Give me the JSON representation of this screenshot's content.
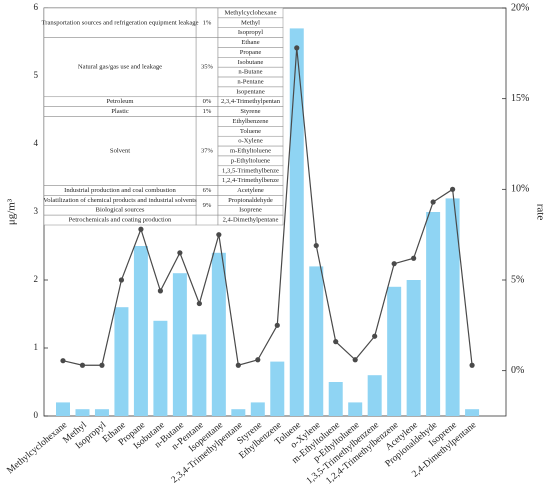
{
  "chart_data": {
    "type": "bar",
    "ylabel": "μg/m³",
    "y2label": "rate",
    "ylim": [
      0,
      6
    ],
    "yticks": [
      0,
      1,
      2,
      3,
      4,
      5,
      6
    ],
    "y2lim": [
      -2.5,
      20
    ],
    "y2ticks": [
      {
        "value": 0,
        "label": "0%"
      },
      {
        "value": 5,
        "label": "5%"
      },
      {
        "value": 10,
        "label": "10%"
      },
      {
        "value": 15,
        "label": "15%"
      },
      {
        "value": 20,
        "label": "20%"
      }
    ],
    "categories": [
      "Methylcyclohexane",
      "Methyl",
      "Isopropyl",
      "Ethane",
      "Propane",
      "Isobutane",
      "n-Butane",
      "n-Pentane",
      "Isopentane",
      "2,3,4-Trimethylpentane",
      "Styrene",
      "Ethylbenzene",
      "Toluene",
      "o-Xylene",
      "m-Ethyltoluene",
      "p-Ethyltoluene",
      "1,3,5-Trimethylbenzene",
      "1,2,4-Trimethylbenzene",
      "Acetylene",
      "Propionaldehyde",
      "Isoprene",
      "2,4-Dimethylpentane"
    ],
    "series": [
      {
        "type": "bar",
        "color": "#8fd4f3",
        "values": [
          0.2,
          0.1,
          0.1,
          1.6,
          2.5,
          1.4,
          2.1,
          1.2,
          2.4,
          0.1,
          0.2,
          0.8,
          5.7,
          2.2,
          0.5,
          0.2,
          0.6,
          1.9,
          2.0,
          3.0,
          3.2,
          0.1
        ]
      },
      {
        "type": "line",
        "axis": "y2",
        "color": "#4a4a4a",
        "values": [
          0.55,
          0.3,
          0.3,
          5.0,
          7.8,
          4.4,
          6.5,
          3.7,
          7.5,
          0.3,
          0.6,
          2.5,
          17.8,
          6.9,
          1.6,
          0.6,
          1.9,
          5.9,
          6.2,
          9.3,
          10.0,
          0.3
        ]
      }
    ],
    "table": [
      {
        "percent": "1%",
        "sources": [
          {
            "name": "Transportation sources and refrigeration equipment leakage",
            "compounds": [
              "Methylcyclohexane",
              "Methyl",
              "Isopropyl"
            ]
          }
        ]
      },
      {
        "percent": "35%",
        "sources": [
          {
            "name": "Natural gas/gas use and leakage",
            "compounds": [
              "Ethane",
              "Propane",
              "Isobutane",
              "n-Butane",
              "n-Pentane",
              "Isopentane"
            ]
          }
        ]
      },
      {
        "percent": "0%",
        "sources": [
          {
            "name": "Petroleum",
            "compounds": [
              "2,3,4-Trimethylpentan"
            ]
          }
        ]
      },
      {
        "percent": "1%",
        "sources": [
          {
            "name": "Plastic",
            "compounds": [
              "Styrene"
            ]
          }
        ]
      },
      {
        "percent": "37%",
        "sources": [
          {
            "name": "Solvent",
            "compounds": [
              "Ethylbenzene",
              "Toluene",
              "o-Xylene",
              "m-Ethyltoluene",
              "p-Ethyltoluene",
              "1,3,5-Trimethylbenze",
              "1,2,4-Trimethylbenze"
            ]
          }
        ]
      },
      {
        "percent": "6%",
        "sources": [
          {
            "name": "Industrial production and coal combustion",
            "compounds": [
              "Acetylene"
            ]
          }
        ]
      },
      {
        "percent": "9%",
        "sources": [
          {
            "name": "Volatilization of chemical products and industrial solvents",
            "compounds": [
              "Propionaldehyde"
            ]
          },
          {
            "name": "Biological sources",
            "compounds": [
              "Isoprene"
            ]
          }
        ]
      },
      {
        "sources": [
          {
            "name": "Petrochemicals and coating production",
            "compounds": [
              "2,4-Dimethylpentane"
            ]
          }
        ]
      }
    ]
  }
}
